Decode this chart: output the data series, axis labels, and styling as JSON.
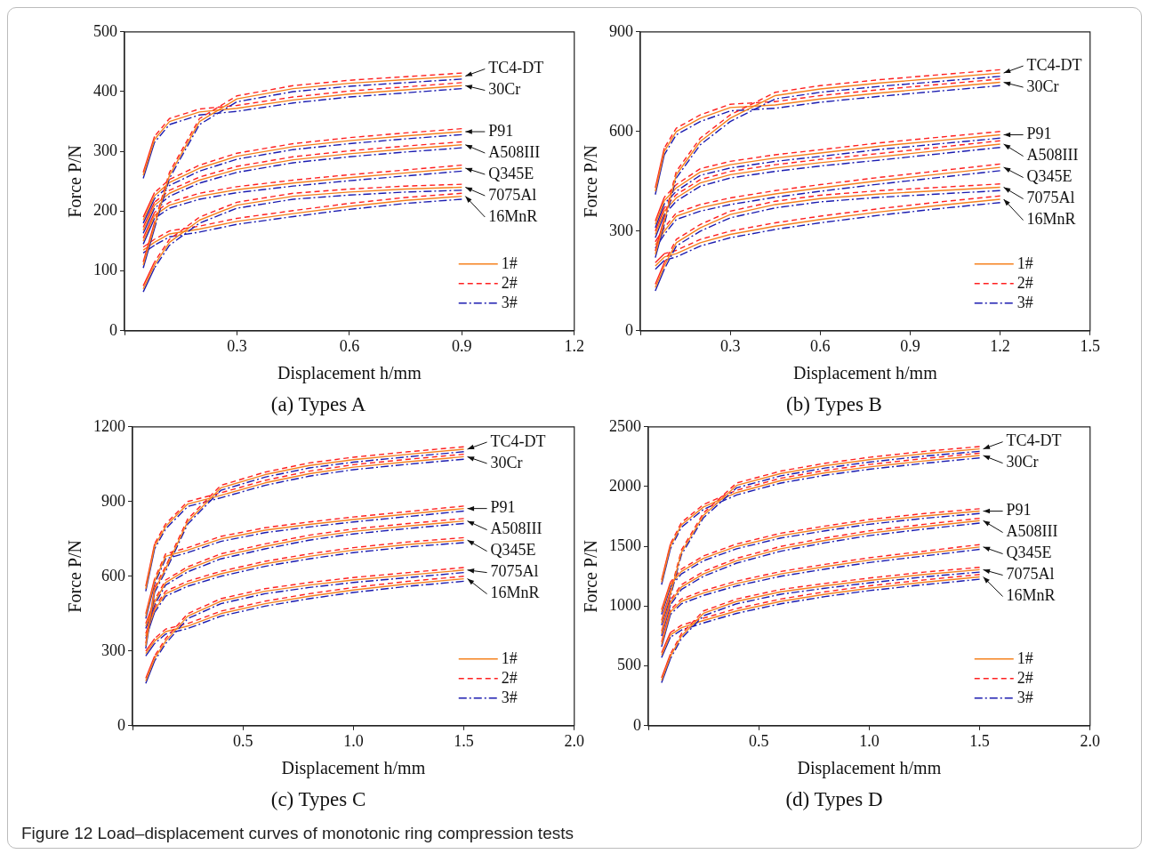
{
  "chart_data": [
    {
      "type": "line",
      "title": "(a) Types A",
      "xlabel": "Displacement h/mm",
      "ylabel": "Force P/N",
      "legend": "bottom right",
      "xlim": [
        0,
        1.2
      ],
      "xticks": [
        {
          "value": 0,
          "label": null
        },
        0.3,
        0.6,
        0.9,
        1.2
      ],
      "ylim": [
        0,
        500
      ],
      "yticks": [
        0,
        100,
        200,
        300,
        400,
        500
      ],
      "x": [
        0.05,
        0.08,
        0.12,
        0.2,
        0.3,
        0.45,
        0.6,
        0.75,
        0.9
      ],
      "series": [
        {
          "name": "1#",
          "color": "#f5821f",
          "line_style": "solid",
          "values": [
            110,
            176,
            260,
            350,
            388,
            405,
            414,
            420,
            426
          ]
        },
        {
          "name": "2#",
          "color": "#ff2020",
          "line_style": "dashed",
          "values": [
            115,
            181,
            265,
            355,
            393,
            410,
            419,
            425,
            431
          ]
        },
        {
          "name": "3#",
          "color": "#1c1cb0",
          "line_style": "dashdot",
          "values": [
            105,
            171,
            255,
            345,
            383,
            400,
            409,
            415,
            421
          ]
        },
        {
          "color": "#f5821f",
          "line_style": "solid",
          "values": [
            260,
            320,
            350,
            366,
            372,
            386,
            396,
            403,
            410
          ]
        },
        {
          "color": "#ff2020",
          "line_style": "dashed",
          "values": [
            265,
            325,
            355,
            371,
            377,
            391,
            401,
            408,
            415
          ]
        },
        {
          "color": "#1c1cb0",
          "line_style": "dashdot",
          "values": [
            255,
            315,
            345,
            361,
            367,
            381,
            391,
            398,
            405
          ]
        },
        {
          "color": "#f5821f",
          "line_style": "solid",
          "values": [
            185,
            226,
            248,
            272,
            292,
            308,
            318,
            326,
            333
          ]
        },
        {
          "color": "#ff2020",
          "line_style": "dashed",
          "values": [
            190,
            231,
            253,
            277,
            297,
            313,
            323,
            331,
            338
          ]
        },
        {
          "color": "#1c1cb0",
          "line_style": "dashdot",
          "values": [
            180,
            221,
            243,
            267,
            287,
            303,
            313,
            321,
            328
          ]
        },
        {
          "color": "#f5821f",
          "line_style": "solid",
          "values": [
            168,
            210,
            230,
            252,
            270,
            286,
            296,
            304,
            311
          ]
        },
        {
          "color": "#ff2020",
          "line_style": "dashed",
          "values": [
            173,
            215,
            235,
            257,
            275,
            291,
            301,
            309,
            316
          ]
        },
        {
          "color": "#1c1cb0",
          "line_style": "dashdot",
          "values": [
            163,
            205,
            225,
            247,
            265,
            281,
            291,
            299,
            306
          ]
        },
        {
          "color": "#f5821f",
          "line_style": "solid",
          "values": [
            150,
            193,
            210,
            225,
            236,
            247,
            256,
            264,
            272
          ]
        },
        {
          "color": "#ff2020",
          "line_style": "dashed",
          "values": [
            155,
            198,
            215,
            230,
            241,
            252,
            261,
            269,
            277
          ]
        },
        {
          "color": "#1c1cb0",
          "line_style": "dashdot",
          "values": [
            145,
            188,
            205,
            220,
            231,
            242,
            251,
            259,
            267
          ]
        },
        {
          "color": "#f5821f",
          "line_style": "solid",
          "values": [
            70,
            110,
            148,
            185,
            210,
            225,
            232,
            237,
            240
          ]
        },
        {
          "color": "#ff2020",
          "line_style": "dashed",
          "values": [
            75,
            115,
            153,
            190,
            215,
            230,
            237,
            242,
            245
          ]
        },
        {
          "color": "#1c1cb0",
          "line_style": "dashdot",
          "values": [
            65,
            105,
            143,
            180,
            205,
            220,
            227,
            232,
            235
          ]
        },
        {
          "color": "#f5821f",
          "line_style": "solid",
          "values": [
            135,
            148,
            162,
            170,
            183,
            196,
            208,
            218,
            225
          ]
        },
        {
          "color": "#ff2020",
          "line_style": "dashed",
          "values": [
            140,
            153,
            167,
            175,
            188,
            201,
            213,
            223,
            230
          ]
        },
        {
          "color": "#1c1cb0",
          "line_style": "dashdot",
          "values": [
            130,
            143,
            157,
            165,
            178,
            191,
            203,
            213,
            220
          ]
        }
      ],
      "annotations": [
        {
          "text": "TC4-DT",
          "x": 0.9,
          "y": 426
        },
        {
          "text": "30Cr",
          "x": 0.9,
          "y": 410
        },
        {
          "text": "P91",
          "x": 0.9,
          "y": 333
        },
        {
          "text": "A508III",
          "x": 0.9,
          "y": 311
        },
        {
          "text": "Q345E",
          "x": 0.9,
          "y": 272
        },
        {
          "text": "7075Al",
          "x": 0.9,
          "y": 240
        },
        {
          "text": "16MnR",
          "x": 0.9,
          "y": 225
        },
        "Figure 12  Load–displacement curves of monotonic ring compression tests"
      ]
    },
    {
      "type": "line",
      "title": "(b) Types B",
      "xlabel": "Displacement h/mm",
      "ylabel": "Force P/N",
      "legend": "bottom right",
      "xlim": [
        0,
        1.5
      ],
      "xticks": [
        {
          "value": 0,
          "label": null
        },
        0.3,
        0.6,
        0.9,
        1.2,
        1.5
      ],
      "ylim": [
        0,
        900
      ],
      "yticks": [
        0,
        300,
        600,
        900
      ],
      "x": [
        0.05,
        0.08,
        0.12,
        0.2,
        0.3,
        0.45,
        0.6,
        0.8,
        1.0,
        1.2
      ],
      "series": [
        {
          "name": "1#",
          "color": "#f5821f",
          "line_style": "solid",
          "values": [
            230,
            330,
            470,
            570,
            640,
            708,
            728,
            746,
            761,
            776
          ]
        },
        {
          "name": "2#",
          "color": "#ff2020",
          "line_style": "dashed",
          "values": [
            240,
            340,
            480,
            580,
            650,
            718,
            738,
            756,
            771,
            786
          ]
        },
        {
          "name": "3#",
          "color": "#1c1cb0",
          "line_style": "dashdot",
          "values": [
            220,
            320,
            460,
            560,
            630,
            698,
            718,
            736,
            751,
            766
          ]
        },
        {
          "color": "#f5821f",
          "line_style": "solid",
          "values": [
            420,
            540,
            600,
            640,
            672,
            680,
            698,
            716,
            732,
            748
          ]
        },
        {
          "color": "#ff2020",
          "line_style": "dashed",
          "values": [
            430,
            550,
            610,
            650,
            682,
            690,
            708,
            726,
            742,
            758
          ]
        },
        {
          "color": "#1c1cb0",
          "line_style": "dashdot",
          "values": [
            410,
            530,
            590,
            630,
            662,
            670,
            688,
            706,
            722,
            738
          ]
        },
        {
          "color": "#f5821f",
          "line_style": "solid",
          "values": [
            320,
            392,
            430,
            478,
            500,
            520,
            535,
            556,
            573,
            590
          ]
        },
        {
          "color": "#ff2020",
          "line_style": "dashed",
          "values": [
            330,
            402,
            440,
            488,
            510,
            530,
            545,
            566,
            583,
            600
          ]
        },
        {
          "color": "#1c1cb0",
          "line_style": "dashdot",
          "values": [
            310,
            382,
            420,
            468,
            490,
            510,
            525,
            546,
            563,
            580
          ]
        },
        {
          "color": "#f5821f",
          "line_style": "solid",
          "values": [
            290,
            360,
            400,
            445,
            470,
            490,
            506,
            524,
            543,
            562
          ]
        },
        {
          "color": "#ff2020",
          "line_style": "dashed",
          "values": [
            300,
            370,
            410,
            455,
            480,
            500,
            516,
            534,
            553,
            572
          ]
        },
        {
          "color": "#1c1cb0",
          "line_style": "dashdot",
          "values": [
            280,
            350,
            390,
            435,
            460,
            480,
            496,
            514,
            533,
            552
          ]
        },
        {
          "color": "#f5821f",
          "line_style": "solid",
          "values": [
            258,
            300,
            345,
            370,
            390,
            412,
            430,
            452,
            472,
            492
          ]
        },
        {
          "color": "#ff2020",
          "line_style": "dashed",
          "values": [
            268,
            310,
            355,
            380,
            400,
            422,
            440,
            462,
            482,
            502
          ]
        },
        {
          "color": "#1c1cb0",
          "line_style": "dashdot",
          "values": [
            248,
            290,
            335,
            360,
            380,
            402,
            420,
            442,
            462,
            482
          ]
        },
        {
          "color": "#f5821f",
          "line_style": "solid",
          "values": [
            130,
            195,
            265,
            310,
            350,
            380,
            398,
            412,
            422,
            432
          ]
        },
        {
          "color": "#ff2020",
          "line_style": "dashed",
          "values": [
            140,
            205,
            275,
            320,
            360,
            390,
            408,
            422,
            432,
            442
          ]
        },
        {
          "color": "#1c1cb0",
          "line_style": "dashdot",
          "values": [
            120,
            185,
            255,
            300,
            340,
            370,
            388,
            402,
            412,
            422
          ]
        },
        {
          "color": "#f5821f",
          "line_style": "solid",
          "values": [
            195,
            222,
            232,
            265,
            290,
            315,
            335,
            358,
            378,
            396
          ]
        },
        {
          "color": "#ff2020",
          "line_style": "dashed",
          "values": [
            205,
            232,
            242,
            275,
            300,
            325,
            345,
            368,
            388,
            406
          ]
        },
        {
          "color": "#1c1cb0",
          "line_style": "dashdot",
          "values": [
            185,
            212,
            222,
            255,
            280,
            305,
            325,
            348,
            368,
            386
          ]
        }
      ],
      "annotations": [
        {
          "text": "TC4-DT",
          "x": 1.2,
          "y": 776
        },
        {
          "text": "30Cr",
          "x": 1.2,
          "y": 748
        },
        {
          "text": "P91",
          "x": 1.2,
          "y": 590
        },
        {
          "text": "A508III",
          "x": 1.2,
          "y": 562
        },
        {
          "text": "Q345E",
          "x": 1.2,
          "y": 492
        },
        {
          "text": "7075Al",
          "x": 1.2,
          "y": 432
        },
        {
          "text": "16MnR",
          "x": 1.2,
          "y": 396
        }
      ]
    },
    {
      "type": "line",
      "title": "(c) Types C",
      "xlabel": "Displacement h/mm",
      "ylabel": "Force P/N",
      "legend": "bottom right",
      "xlim": [
        0,
        2
      ],
      "xticks": [
        {
          "value": 0,
          "label": null
        },
        0.5,
        {
          "value": 1,
          "label": "1.0"
        },
        1.5,
        {
          "value": 2,
          "label": "2.0"
        }
      ],
      "ylim": [
        0,
        1200
      ],
      "yticks": [
        0,
        300,
        600,
        900,
        1200
      ],
      "x": [
        0.06,
        0.1,
        0.15,
        0.25,
        0.4,
        0.6,
        0.8,
        1.0,
        1.25,
        1.5
      ],
      "series": [
        {
          "name": "1#",
          "color": "#f5821f",
          "line_style": "solid",
          "values": [
            320,
            545,
            630,
            820,
            955,
            1008,
            1045,
            1068,
            1090,
            1110
          ]
        },
        {
          "name": "2#",
          "color": "#ff2020",
          "line_style": "dashed",
          "values": [
            330,
            555,
            640,
            830,
            965,
            1018,
            1055,
            1078,
            1100,
            1120
          ]
        },
        {
          "name": "3#",
          "color": "#1c1cb0",
          "line_style": "dashdot",
          "values": [
            310,
            535,
            620,
            810,
            945,
            998,
            1035,
            1058,
            1080,
            1100
          ]
        },
        {
          "color": "#f5821f",
          "line_style": "solid",
          "values": [
            550,
            720,
            800,
            890,
            925,
            975,
            1012,
            1038,
            1060,
            1080
          ]
        },
        {
          "color": "#ff2020",
          "line_style": "dashed",
          "values": [
            560,
            730,
            810,
            900,
            935,
            985,
            1022,
            1048,
            1070,
            1090
          ]
        },
        {
          "color": "#1c1cb0",
          "line_style": "dashdot",
          "values": [
            540,
            710,
            790,
            880,
            915,
            965,
            1002,
            1028,
            1050,
            1070
          ]
        },
        {
          "color": "#f5821f",
          "line_style": "solid",
          "values": [
            440,
            580,
            680,
            705,
            750,
            785,
            808,
            828,
            850,
            872
          ]
        },
        {
          "color": "#ff2020",
          "line_style": "dashed",
          "values": [
            450,
            590,
            690,
            715,
            760,
            795,
            818,
            838,
            860,
            882
          ]
        },
        {
          "color": "#1c1cb0",
          "line_style": "dashdot",
          "values": [
            430,
            570,
            670,
            695,
            740,
            775,
            798,
            818,
            840,
            862
          ]
        },
        {
          "color": "#f5821f",
          "line_style": "solid",
          "values": [
            400,
            495,
            575,
            628,
            680,
            720,
            755,
            780,
            802,
            822
          ]
        },
        {
          "color": "#ff2020",
          "line_style": "dashed",
          "values": [
            410,
            505,
            585,
            638,
            690,
            730,
            765,
            790,
            812,
            832
          ]
        },
        {
          "color": "#1c1cb0",
          "line_style": "dashdot",
          "values": [
            390,
            485,
            565,
            618,
            670,
            710,
            745,
            770,
            792,
            812
          ]
        },
        {
          "color": "#f5821f",
          "line_style": "solid",
          "values": [
            360,
            465,
            530,
            570,
            610,
            650,
            680,
            705,
            728,
            745
          ]
        },
        {
          "color": "#ff2020",
          "line_style": "dashed",
          "values": [
            370,
            475,
            540,
            580,
            620,
            660,
            690,
            715,
            738,
            755
          ]
        },
        {
          "color": "#1c1cb0",
          "line_style": "dashdot",
          "values": [
            350,
            455,
            520,
            560,
            600,
            640,
            670,
            695,
            718,
            735
          ]
        },
        {
          "color": "#f5821f",
          "line_style": "solid",
          "values": [
            180,
            270,
            340,
            440,
            500,
            540,
            565,
            585,
            605,
            625
          ]
        },
        {
          "color": "#ff2020",
          "line_style": "dashed",
          "values": [
            190,
            280,
            350,
            450,
            510,
            550,
            575,
            595,
            615,
            635
          ]
        },
        {
          "color": "#1c1cb0",
          "line_style": "dashdot",
          "values": [
            170,
            260,
            330,
            430,
            490,
            530,
            555,
            575,
            595,
            615
          ]
        },
        {
          "color": "#f5821f",
          "line_style": "solid",
          "values": [
            290,
            340,
            378,
            400,
            450,
            490,
            520,
            545,
            570,
            590
          ]
        },
        {
          "color": "#ff2020",
          "line_style": "dashed",
          "values": [
            300,
            350,
            388,
            410,
            460,
            500,
            530,
            555,
            580,
            600
          ]
        },
        {
          "color": "#1c1cb0",
          "line_style": "dashdot",
          "values": [
            280,
            330,
            368,
            390,
            440,
            480,
            510,
            535,
            560,
            580
          ]
        }
      ],
      "annotations": [
        {
          "text": "TC4-DT",
          "x": 1.5,
          "y": 1110
        },
        {
          "text": "30Cr",
          "x": 1.5,
          "y": 1080
        },
        {
          "text": "P91",
          "x": 1.5,
          "y": 872
        },
        {
          "text": "A508III",
          "x": 1.5,
          "y": 822
        },
        {
          "text": "Q345E",
          "x": 1.5,
          "y": 745
        },
        {
          "text": "7075Al",
          "x": 1.5,
          "y": 625
        },
        {
          "text": "16MnR",
          "x": 1.5,
          "y": 590
        }
      ]
    },
    {
      "type": "line",
      "title": "(d) Types D",
      "xlabel": "Displacement h/mm",
      "ylabel": "Force P/N",
      "legend": "bottom right",
      "xlim": [
        0,
        2
      ],
      "xticks": [
        {
          "value": 0,
          "label": null
        },
        0.5,
        {
          "value": 1,
          "label": "1.0"
        },
        1.5,
        {
          "value": 2,
          "label": "2.0"
        }
      ],
      "ylim": [
        0,
        2500
      ],
      "yticks": [
        0,
        500,
        1000,
        1500,
        2000,
        2500
      ],
      "x": [
        0.06,
        0.1,
        0.15,
        0.25,
        0.4,
        0.6,
        0.8,
        1.0,
        1.25,
        1.5
      ],
      "series": [
        {
          "name": "1#",
          "color": "#f5821f",
          "line_style": "solid",
          "values": [
            860,
            1100,
            1450,
            1760,
            2010,
            2110,
            2175,
            2225,
            2275,
            2315
          ]
        },
        {
          "name": "2#",
          "color": "#ff2020",
          "line_style": "dashed",
          "values": [
            880,
            1120,
            1470,
            1780,
            2030,
            2130,
            2195,
            2245,
            2295,
            2335
          ]
        },
        {
          "name": "3#",
          "color": "#1c1cb0",
          "line_style": "dashdot",
          "values": [
            840,
            1080,
            1430,
            1740,
            1990,
            2090,
            2155,
            2205,
            2255,
            2295
          ]
        },
        {
          "color": "#f5821f",
          "line_style": "solid",
          "values": [
            1200,
            1500,
            1680,
            1830,
            1950,
            2050,
            2115,
            2165,
            2215,
            2260
          ]
        },
        {
          "color": "#ff2020",
          "line_style": "dashed",
          "values": [
            1220,
            1520,
            1700,
            1850,
            1970,
            2070,
            2135,
            2185,
            2235,
            2280
          ]
        },
        {
          "color": "#1c1cb0",
          "line_style": "dashdot",
          "values": [
            1180,
            1480,
            1660,
            1810,
            1930,
            2030,
            2095,
            2145,
            2195,
            2240
          ]
        },
        {
          "color": "#f5821f",
          "line_style": "solid",
          "values": [
            950,
            1180,
            1290,
            1400,
            1500,
            1590,
            1650,
            1705,
            1755,
            1795
          ]
        },
        {
          "color": "#ff2020",
          "line_style": "dashed",
          "values": [
            970,
            1200,
            1310,
            1420,
            1520,
            1610,
            1670,
            1725,
            1775,
            1815
          ]
        },
        {
          "color": "#1c1cb0",
          "line_style": "dashdot",
          "values": [
            930,
            1160,
            1270,
            1380,
            1480,
            1570,
            1630,
            1685,
            1735,
            1775
          ]
        },
        {
          "color": "#f5821f",
          "line_style": "solid",
          "values": [
            770,
            1030,
            1160,
            1270,
            1380,
            1480,
            1550,
            1610,
            1665,
            1715
          ]
        },
        {
          "color": "#ff2020",
          "line_style": "dashed",
          "values": [
            790,
            1050,
            1180,
            1290,
            1400,
            1500,
            1570,
            1630,
            1685,
            1735
          ]
        },
        {
          "color": "#1c1cb0",
          "line_style": "dashdot",
          "values": [
            750,
            1010,
            1140,
            1250,
            1360,
            1460,
            1530,
            1590,
            1645,
            1695
          ]
        },
        {
          "color": "#f5821f",
          "line_style": "solid",
          "values": [
            680,
            950,
            1040,
            1110,
            1190,
            1270,
            1330,
            1385,
            1440,
            1495
          ]
        },
        {
          "color": "#ff2020",
          "line_style": "dashed",
          "values": [
            700,
            970,
            1060,
            1130,
            1210,
            1290,
            1350,
            1405,
            1460,
            1515
          ]
        },
        {
          "color": "#1c1cb0",
          "line_style": "dashdot",
          "values": [
            660,
            930,
            1020,
            1090,
            1170,
            1250,
            1310,
            1365,
            1420,
            1475
          ]
        },
        {
          "color": "#f5821f",
          "line_style": "solid",
          "values": [
            380,
            580,
            750,
            940,
            1040,
            1120,
            1170,
            1215,
            1265,
            1305
          ]
        },
        {
          "color": "#ff2020",
          "line_style": "dashed",
          "values": [
            400,
            600,
            770,
            960,
            1060,
            1140,
            1190,
            1235,
            1285,
            1325
          ]
        },
        {
          "color": "#1c1cb0",
          "line_style": "dashdot",
          "values": [
            360,
            560,
            730,
            920,
            1020,
            1100,
            1150,
            1195,
            1245,
            1285
          ]
        },
        {
          "color": "#f5821f",
          "line_style": "solid",
          "values": [
            590,
            760,
            820,
            880,
            960,
            1040,
            1100,
            1150,
            1200,
            1245
          ]
        },
        {
          "color": "#ff2020",
          "line_style": "dashed",
          "values": [
            610,
            780,
            840,
            900,
            980,
            1060,
            1120,
            1170,
            1220,
            1265
          ]
        },
        {
          "color": "#1c1cb0",
          "line_style": "dashdot",
          "values": [
            570,
            740,
            800,
            860,
            940,
            1020,
            1080,
            1130,
            1180,
            1225
          ]
        }
      ],
      "annotations": [
        {
          "text": "TC4-DT",
          "x": 1.5,
          "y": 2315
        },
        {
          "text": "30Cr",
          "x": 1.5,
          "y": 2260
        },
        {
          "text": "P91",
          "x": 1.5,
          "y": 1795
        },
        {
          "text": "A508III",
          "x": 1.5,
          "y": 1715
        },
        {
          "text": "Q345E",
          "x": 1.5,
          "y": 1495
        },
        {
          "text": "7075Al",
          "x": 1.5,
          "y": 1305
        },
        {
          "text": "16MnR",
          "x": 1.5,
          "y": 1245
        }
      ]
    }
  ]
}
